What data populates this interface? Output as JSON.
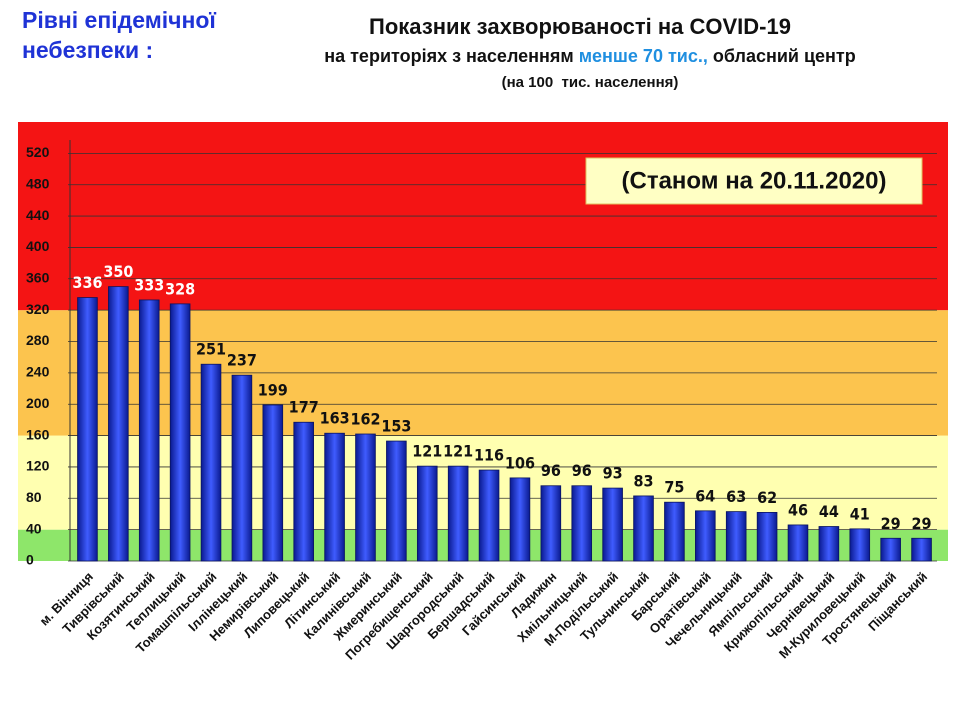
{
  "chart_data": {
    "type": "bar",
    "heading": [
      "Рівні епідемічної",
      "небезпеки :"
    ],
    "title": "Показник захворюваності на COVID-19",
    "subtitle": [
      "на територіях з населенням ",
      "менше 70 тис.,",
      " обласний центр"
    ],
    "subtitle_note": "(на 100  тис. населення)",
    "annotation": "(Станом на 20.11.2020)",
    "categories": [
      "м. Вінниця",
      "Тиврівський",
      "Козятинський",
      "Теплицький",
      "Томашпільський",
      "Іллінецький",
      "Немирівський",
      "Липовецький",
      "Літинський",
      "Калинівський",
      "Жмеринський",
      "Погребищенський",
      "Шаргородський",
      "Бершадський",
      "Гайсинський",
      "Ладижин",
      "Хмільницький",
      "М-Подільський",
      "Тульчинський",
      "Барський",
      "Оратівський",
      "Чечельницький",
      "Ямпільський",
      "Крижопільський",
      "Чернівецький",
      "М-Куриловецький",
      "Тростянецький",
      "Піщанський"
    ],
    "values": [
      336,
      350,
      333,
      328,
      251,
      237,
      199,
      177,
      163,
      162,
      153,
      121,
      121,
      116,
      106,
      96,
      96,
      93,
      83,
      75,
      64,
      63,
      62,
      46,
      44,
      41,
      29,
      29
    ],
    "color": "#1c2fd8",
    "ylim": [
      0,
      560
    ],
    "yticks": [
      0,
      40,
      80,
      120,
      160,
      200,
      240,
      280,
      320,
      360,
      400,
      440,
      480,
      520
    ],
    "grid": true,
    "bands": [
      {
        "from": 0,
        "to": 40,
        "color": "#8ee66a"
      },
      {
        "from": 40,
        "to": 160,
        "color": "#ffffb0"
      },
      {
        "from": 160,
        "to": 320,
        "color": "#fcc44e"
      },
      {
        "from": 320,
        "to": 560,
        "color": "#f41414"
      }
    ]
  }
}
